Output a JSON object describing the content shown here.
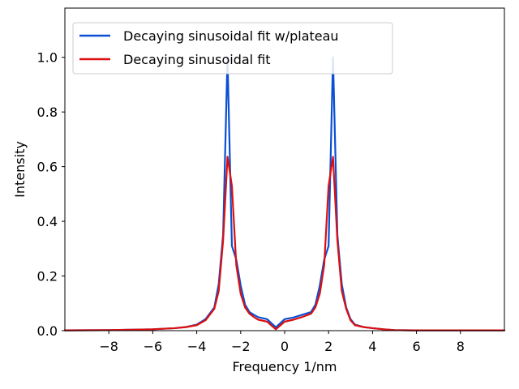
{
  "chart_data": {
    "type": "line",
    "title": "",
    "xlabel": "Frequency 1/nm",
    "ylabel": "Intensity",
    "xlim": [
      -10,
      10
    ],
    "ylim": [
      0,
      1.18
    ],
    "xticks": [
      -8,
      -6,
      -4,
      -2,
      0,
      2,
      4,
      6,
      8
    ],
    "xtick_labels": [
      "−8",
      "−6",
      "−4",
      "−2",
      "0",
      "2",
      "4",
      "6",
      "8"
    ],
    "yticks": [
      0.0,
      0.2,
      0.4,
      0.6,
      0.8,
      1.0
    ],
    "ytick_labels": [
      "0.0",
      "0.2",
      "0.4",
      "0.6",
      "0.8",
      "1.0"
    ],
    "grid": false,
    "legend_position": "top-left",
    "series": [
      {
        "name": "Decaying sinusoidal fit w/plateau",
        "color": "#0a4fd4",
        "x": [
          -10,
          -8,
          -6,
          -5,
          -4.5,
          -4,
          -3.6,
          -3.2,
          -3.0,
          -2.8,
          -2.6,
          -2.4,
          -2.2,
          -2.0,
          -1.8,
          -1.6,
          -1.4,
          -1.2,
          -0.8,
          -0.4,
          0,
          0.4,
          0.8,
          1.2,
          1.4,
          1.6,
          1.8,
          2.0,
          2.2,
          2.4,
          2.6,
          2.8,
          3.0,
          3.2,
          3.6,
          4.0,
          4.5,
          5.0,
          6.0,
          8.0,
          10
        ],
        "y": [
          0.001,
          0.002,
          0.005,
          0.009,
          0.013,
          0.022,
          0.042,
          0.085,
          0.17,
          0.35,
          1.0,
          0.31,
          0.26,
          0.165,
          0.095,
          0.068,
          0.058,
          0.049,
          0.042,
          0.012,
          0.042,
          0.048,
          0.058,
          0.068,
          0.095,
          0.165,
          0.26,
          0.31,
          1.0,
          0.35,
          0.17,
          0.085,
          0.042,
          0.022,
          0.013,
          0.009,
          0.005,
          0.002,
          0.001,
          0.001,
          0.001
        ]
      },
      {
        "name": "Decaying sinusoidal fit",
        "color": "#dd0f0f",
        "x": [
          -10,
          -8,
          -6,
          -5,
          -4.5,
          -4,
          -3.6,
          -3.2,
          -3.0,
          -2.8,
          -2.6,
          -2.4,
          -2.2,
          -2.0,
          -1.8,
          -1.6,
          -1.4,
          -1.2,
          -0.8,
          -0.4,
          0,
          0.4,
          0.8,
          1.2,
          1.4,
          1.6,
          1.8,
          2.0,
          2.2,
          2.4,
          2.6,
          2.8,
          3.0,
          3.2,
          3.6,
          4.0,
          4.5,
          5.0,
          6.0,
          8.0,
          10
        ],
        "y": [
          0.001,
          0.002,
          0.005,
          0.009,
          0.013,
          0.02,
          0.038,
          0.08,
          0.145,
          0.33,
          0.636,
          0.53,
          0.24,
          0.135,
          0.085,
          0.062,
          0.05,
          0.04,
          0.033,
          0.005,
          0.033,
          0.04,
          0.05,
          0.062,
          0.085,
          0.135,
          0.24,
          0.53,
          0.636,
          0.33,
          0.145,
          0.08,
          0.038,
          0.02,
          0.013,
          0.009,
          0.005,
          0.002,
          0.001,
          0.001,
          0.001
        ]
      }
    ]
  }
}
